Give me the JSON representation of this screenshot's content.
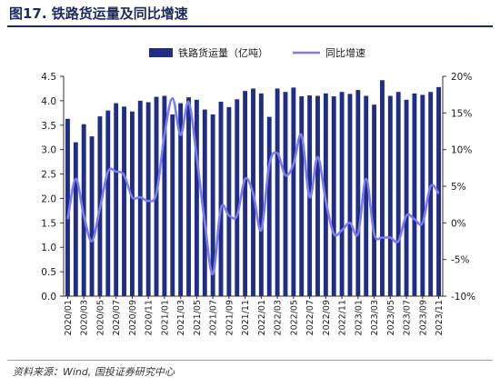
{
  "figure": {
    "title": "图17. 铁路货运量及同比增速",
    "source": "资料来源：Wind, 国投证券研究中心"
  },
  "chart_data": {
    "type": "bar+line",
    "x": [
      "2020/01",
      "2020/02",
      "2020/03",
      "2020/04",
      "2020/05",
      "2020/06",
      "2020/07",
      "2020/08",
      "2020/09",
      "2020/10",
      "2020/11",
      "2020/12",
      "2021/01",
      "2021/02",
      "2021/03",
      "2021/04",
      "2021/05",
      "2021/06",
      "2021/07",
      "2021/08",
      "2021/09",
      "2021/10",
      "2021/11",
      "2021/12",
      "2022/01",
      "2022/02",
      "2022/03",
      "2022/04",
      "2022/05",
      "2022/06",
      "2022/07",
      "2022/08",
      "2022/09",
      "2022/10",
      "2022/11",
      "2022/12",
      "2023/01",
      "2023/02",
      "2023/03",
      "2023/04",
      "2023/05",
      "2023/06",
      "2023/07",
      "2023/08",
      "2023/09",
      "2023/10",
      "2023/11"
    ],
    "xticks_shown": [
      "2020/01",
      "2020/03",
      "2020/05",
      "2020/07",
      "2020/09",
      "2020/11",
      "2021/01",
      "2021/03",
      "2021/05",
      "2021/07",
      "2021/09",
      "2021/11",
      "2022/01",
      "2022/03",
      "2022/05",
      "2022/07",
      "2022/09",
      "2022/11",
      "2023/01",
      "2023/03",
      "2023/05",
      "2023/07",
      "2023/09",
      "2023/11"
    ],
    "series": [
      {
        "name": "铁路货运量（亿吨）",
        "axis": "left",
        "kind": "bar",
        "color": "#1f2d86",
        "values": [
          3.63,
          3.15,
          3.52,
          3.27,
          3.68,
          3.8,
          3.95,
          3.88,
          3.78,
          4.0,
          3.97,
          4.08,
          4.1,
          3.72,
          3.95,
          4.07,
          4.02,
          3.82,
          3.72,
          3.98,
          3.87,
          4.03,
          4.2,
          4.25,
          4.15,
          3.67,
          4.25,
          4.18,
          4.27,
          4.09,
          4.11,
          4.1,
          4.15,
          4.09,
          4.18,
          4.14,
          4.22,
          4.1,
          3.92,
          4.42,
          4.1,
          4.18,
          4.02,
          4.15,
          4.12,
          4.18,
          4.28
        ]
      },
      {
        "name": "同比增速",
        "axis": "right",
        "kind": "line",
        "color": "#7b7cf2",
        "values": [
          0.5,
          6.0,
          1.0,
          -2.5,
          2.0,
          7.0,
          7.0,
          6.5,
          3.5,
          3.5,
          3.0,
          4.0,
          12.0,
          17.0,
          12.0,
          16.5,
          9.0,
          0.0,
          -7.0,
          2.0,
          1.0,
          1.0,
          6.0,
          4.0,
          -1.0,
          8.0,
          9.5,
          6.5,
          8.0,
          12.0,
          3.5,
          9.0,
          3.0,
          -1.5,
          -1.0,
          0.0,
          -1.5,
          6.0,
          -1.5,
          -2.0,
          -2.0,
          -2.5,
          1.0,
          0.5,
          0.0,
          5.0,
          4.0
        ]
      }
    ],
    "ylim_left": [
      0,
      4.5
    ],
    "ylim_right": [
      -10,
      20
    ],
    "yticks_left": [
      "0.0",
      "0.5",
      "1.0",
      "1.5",
      "2.0",
      "2.5",
      "3.0",
      "3.5",
      "4.0",
      "4.5"
    ],
    "yticks_right": [
      "-10%",
      "-5%",
      "0%",
      "5%",
      "10%",
      "15%",
      "20%"
    ],
    "legend_position": "top-center",
    "grid": false
  }
}
